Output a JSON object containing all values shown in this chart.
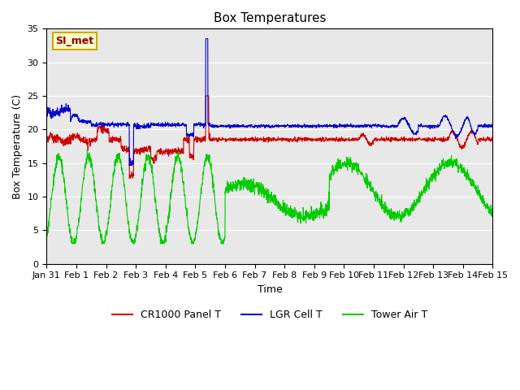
{
  "title": "Box Temperatures",
  "xlabel": "Time",
  "ylabel": "Box Temperature (C)",
  "ylim": [
    0,
    35
  ],
  "annotation_text": "SI_met",
  "legend_labels": [
    "CR1000 Panel T",
    "LGR Cell T",
    "Tower Air T"
  ],
  "legend_colors": [
    "#cc0000",
    "#0000cc",
    "#00cc00"
  ],
  "background_color": "#e8e8e8",
  "fig_background": "#ffffff",
  "tick_labels": [
    "Jan 31",
    "Feb 1",
    "Feb 2",
    "Feb 3",
    "Feb 4",
    "Feb 5",
    "Feb 6",
    "Feb 7",
    "Feb 8",
    "Feb 9",
    "Feb 10",
    "Feb 11",
    "Feb 12",
    "Feb 13",
    "Feb 14",
    "Feb 15"
  ],
  "title_fontsize": 11,
  "axis_fontsize": 9,
  "tick_fontsize": 8,
  "legend_fontsize": 9,
  "annotation_color": "#8B0000",
  "annotation_bg": "#ffffcc",
  "annotation_edge": "#ccaa00"
}
